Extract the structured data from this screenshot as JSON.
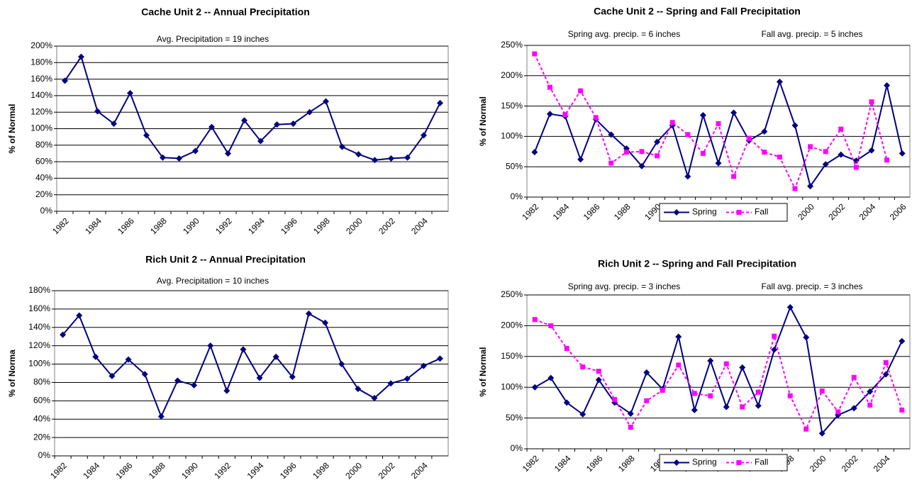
{
  "chart_data": [
    {
      "type": "line",
      "title": "Cache Unit 2 --  Annual Precipitation",
      "annotations": [
        "Avg. Precipitation = 19 inches"
      ],
      "y_label": "% of Normal",
      "categories": [
        "1982",
        null,
        "1984",
        null,
        "1986",
        null,
        "1988",
        null,
        "1990",
        null,
        "1992",
        null,
        "1994",
        null,
        "1996",
        null,
        "1998",
        null,
        "2000",
        null,
        "2002",
        null,
        "2004",
        null
      ],
      "series": [
        {
          "color": "#000080",
          "marker": "diamond",
          "line_style": "solid",
          "values": [
            158,
            187,
            121,
            106,
            143,
            92,
            65,
            64,
            73,
            102,
            70,
            110,
            85,
            105,
            106,
            120,
            133,
            78,
            69,
            62,
            64,
            65,
            92,
            131
          ]
        }
      ],
      "ylim": [
        0,
        200
      ],
      "yticks": [
        {
          "value": 0,
          "label": "0%"
        },
        {
          "value": 20,
          "label": "20%"
        },
        {
          "value": 40,
          "label": "40%"
        },
        {
          "value": 60,
          "label": "60%"
        },
        {
          "value": 80,
          "label": "80%"
        },
        {
          "value": 100,
          "label": "100%"
        },
        {
          "value": 120,
          "label": "120%"
        },
        {
          "value": 140,
          "label": "140%"
        },
        {
          "value": 160,
          "label": "160%"
        },
        {
          "value": 180,
          "label": "180%"
        },
        {
          "value": 200,
          "label": "200%"
        }
      ],
      "grid": true
    },
    {
      "type": "line",
      "title": "Cache Unit 2 -- Spring and Fall Precipitation",
      "annotations": [
        "Spring avg. precip. = 6 inches",
        "Fall avg. precip. = 5 inches"
      ],
      "y_label": "% of Normal",
      "categories": [
        "1982",
        null,
        "1984",
        null,
        "1986",
        null,
        "1988",
        null,
        "1990",
        null,
        "1992",
        null,
        "1994",
        null,
        "1996",
        null,
        "1998",
        null,
        "2000",
        null,
        "2002",
        null,
        "2004",
        null,
        "2006"
      ],
      "series": [
        {
          "name": "Spring",
          "color": "#000080",
          "marker": "diamond",
          "line_style": "solid",
          "values": [
            74,
            137,
            133,
            62,
            128,
            103,
            80,
            51,
            91,
            118,
            34,
            135,
            56,
            139,
            93,
            108,
            190,
            118,
            18,
            54,
            70,
            60,
            77,
            184,
            72
          ]
        },
        {
          "name": "Fall",
          "color": "#ff00ff",
          "marker": "square",
          "line_style": "dashed",
          "values": [
            236,
            181,
            136,
            175,
            131,
            56,
            74,
            75,
            68,
            123,
            103,
            72,
            121,
            34,
            97,
            74,
            66,
            14,
            83,
            75,
            112,
            49,
            157,
            61,
            null
          ]
        }
      ],
      "ylim": [
        0,
        250
      ],
      "yticks": [
        {
          "value": 0,
          "label": "0%"
        },
        {
          "value": 50,
          "label": "50%"
        },
        {
          "value": 100,
          "label": "100%"
        },
        {
          "value": 150,
          "label": "150%"
        },
        {
          "value": 200,
          "label": "200%"
        },
        {
          "value": 250,
          "label": "250%"
        }
      ],
      "grid": true,
      "legend": "bottom"
    },
    {
      "type": "line",
      "title": "Rich Unit 2 --  Annual Precipitation",
      "annotations": [
        "Avg. Precipitation = 10 inches"
      ],
      "y_label": "% of Norma",
      "categories": [
        "1982",
        null,
        "1984",
        null,
        "1986",
        null,
        "1988",
        null,
        "1990",
        null,
        "1992",
        null,
        "1994",
        null,
        "1996",
        null,
        "1998",
        null,
        "2000",
        null,
        "2002",
        null,
        "2004",
        null
      ],
      "series": [
        {
          "color": "#000080",
          "marker": "diamond",
          "line_style": "solid",
          "values": [
            132,
            153,
            108,
            87,
            105,
            89,
            43,
            82,
            77,
            120,
            71,
            116,
            85,
            108,
            86,
            155,
            145,
            100,
            73,
            63,
            79,
            84,
            98,
            106
          ]
        }
      ],
      "ylim": [
        0,
        180
      ],
      "yticks": [
        {
          "value": 0,
          "label": "0%"
        },
        {
          "value": 20,
          "label": "20%"
        },
        {
          "value": 40,
          "label": "40%"
        },
        {
          "value": 60,
          "label": "60%"
        },
        {
          "value": 80,
          "label": "80%"
        },
        {
          "value": 100,
          "label": "100%"
        },
        {
          "value": 120,
          "label": "120%"
        },
        {
          "value": 140,
          "label": "140%"
        },
        {
          "value": 160,
          "label": "160%"
        },
        {
          "value": 180,
          "label": "180%"
        }
      ],
      "grid": true
    },
    {
      "type": "line",
      "title": "Rich Unit 2 -- Spring and Fall Precipitation",
      "annotations": [
        "Spring avg. precip. = 3 inches",
        "Fall avg. precip. = 3 inches"
      ],
      "y_label": "% of Normal",
      "categories": [
        "1982",
        null,
        "1984",
        null,
        "1986",
        null,
        "1988",
        null,
        "1990",
        null,
        "1992",
        null,
        "1994",
        null,
        "1996",
        null,
        "1998",
        null,
        "2000",
        null,
        "2002",
        null,
        "2004",
        null
      ],
      "series": [
        {
          "name": "Spring",
          "color": "#000080",
          "marker": "diamond",
          "line_style": "solid",
          "values": [
            100,
            115,
            75,
            56,
            112,
            75,
            57,
            124,
            97,
            182,
            63,
            143,
            68,
            132,
            70,
            161,
            230,
            181,
            25,
            55,
            66,
            93,
            121,
            175
          ]
        },
        {
          "name": "Fall",
          "color": "#ff00ff",
          "marker": "square",
          "line_style": "dashed",
          "values": [
            210,
            200,
            163,
            133,
            126,
            80,
            35,
            78,
            95,
            136,
            90,
            86,
            138,
            68,
            92,
            183,
            86,
            32,
            94,
            60,
            116,
            71,
            140,
            63
          ]
        }
      ],
      "ylim": [
        0,
        250
      ],
      "yticks": [
        {
          "value": 0,
          "label": "0%"
        },
        {
          "value": 50,
          "label": "50%"
        },
        {
          "value": 100,
          "label": "100%"
        },
        {
          "value": 150,
          "label": "150%"
        },
        {
          "value": 200,
          "label": "200%"
        },
        {
          "value": 250,
          "label": "250%"
        }
      ],
      "grid": true,
      "legend": "bottom"
    }
  ]
}
